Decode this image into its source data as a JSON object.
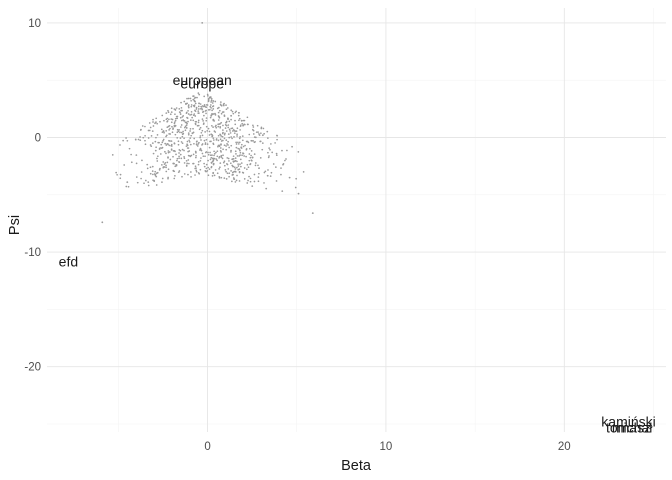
{
  "chart_data": {
    "type": "scatter",
    "title": "",
    "xlabel": "Beta",
    "ylabel": "Psi",
    "xlim": [
      -9,
      25.7
    ],
    "ylim": [
      -25.7,
      11.3
    ],
    "x_ticks": [
      0,
      10,
      20
    ],
    "y_ticks": [
      -20,
      -10,
      0,
      10
    ],
    "x_tick_labels": [
      "0",
      "10",
      "20"
    ],
    "y_tick_labels": [
      "-20",
      "-10",
      "0",
      "10"
    ],
    "grid": true,
    "point_color": "#9a9a9a",
    "cloud": {
      "description_free": true,
      "count": 900,
      "x_range": [
        -6,
        6
      ],
      "peak": {
        "x": -0.3,
        "y": 4.2
      },
      "base_y": -3.3,
      "slope": 0.62,
      "seed": 7
    },
    "points": [
      {
        "x": -0.3,
        "y": 10.0
      },
      {
        "x": 3.1,
        "y": 0.2
      },
      {
        "x": -5.9,
        "y": -7.4
      },
      {
        "x": -4.5,
        "y": -3.9
      },
      {
        "x": -3.2,
        "y": -2.6
      },
      {
        "x": 4.6,
        "y": -3.5
      },
      {
        "x": 5.1,
        "y": -4.9
      },
      {
        "x": 5.9,
        "y": -6.6
      }
    ],
    "labels": [
      {
        "text": "european",
        "x": -0.3,
        "y": 5.0
      },
      {
        "text": "europe",
        "x": -0.3,
        "y": 4.7
      },
      {
        "text": "efd",
        "x": -7.8,
        "y": -10.8
      },
      {
        "text": "kamiński",
        "x": 23.6,
        "y": -24.8
      },
      {
        "text": "tomasz",
        "x": 23.6,
        "y": -25.3
      },
      {
        "text": "michał",
        "x": 23.8,
        "y": -25.3
      }
    ]
  }
}
